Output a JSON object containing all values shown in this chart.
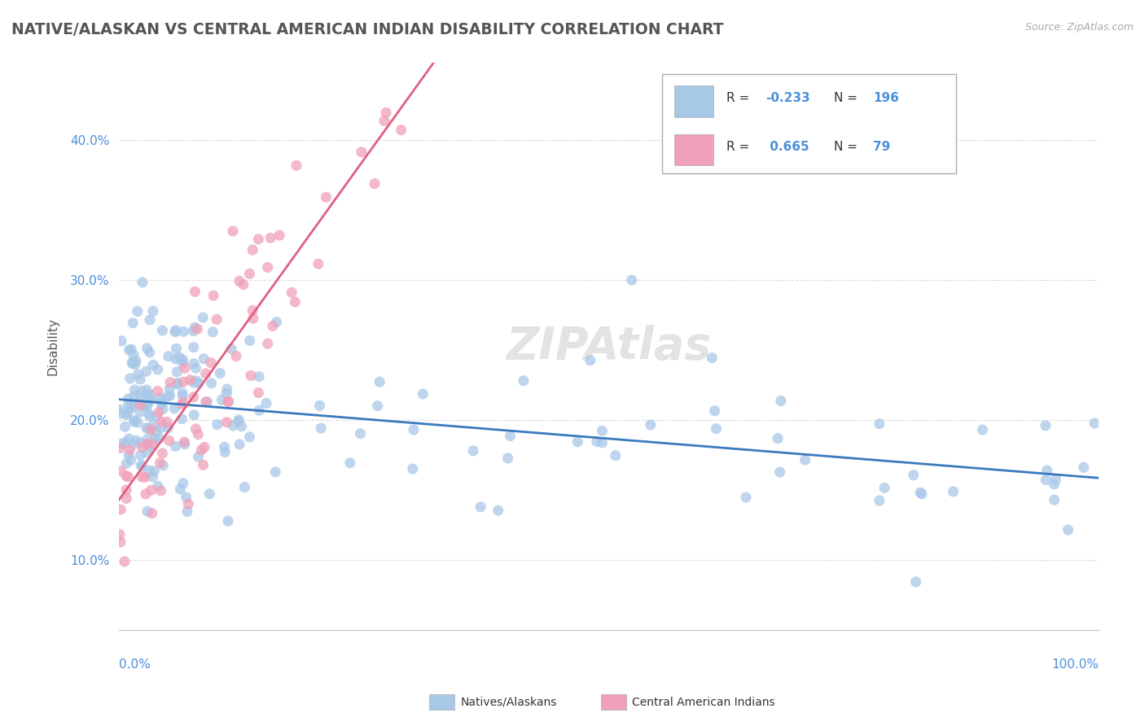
{
  "title": "NATIVE/ALASKAN VS CENTRAL AMERICAN INDIAN DISABILITY CORRELATION CHART",
  "source": "Source: ZipAtlas.com",
  "ylabel": "Disability",
  "watermark": "ZIPAtlas",
  "blue_R": -0.233,
  "blue_N": 196,
  "pink_R": 0.665,
  "pink_N": 79,
  "blue_line_color": "#3a7abf",
  "pink_line_color": "#e06080",
  "blue_scatter_color": "#a8c8e8",
  "pink_scatter_color": "#f0a0b8",
  "title_color": "#555555",
  "source_color": "#aaaaaa",
  "axis_label_color": "#4a90d9",
  "ytick_labels": [
    "10.0%",
    "20.0%",
    "30.0%",
    "40.0%"
  ],
  "ytick_values": [
    0.1,
    0.2,
    0.3,
    0.4
  ],
  "xlim": [
    0.0,
    1.0
  ],
  "ylim": [
    0.05,
    0.45
  ]
}
